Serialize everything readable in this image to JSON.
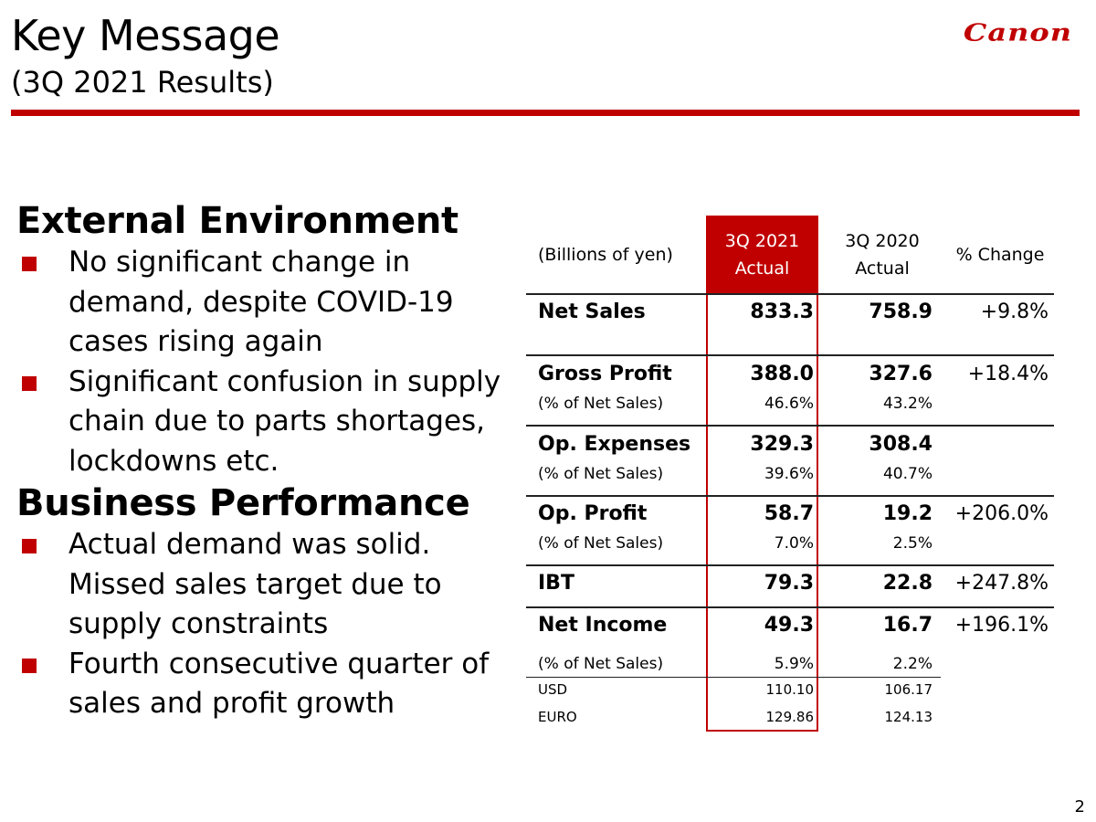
{
  "header": {
    "title": "Key Message",
    "subtitle": "(3Q 2021 Results)",
    "logo_text": "Canon",
    "accent_color": "#c00000"
  },
  "sections": [
    {
      "heading": "External Environment",
      "bullets": [
        "No significant change in demand, despite COVID-19 cases rising again",
        "Significant confusion in supply chain due to parts shortages, lockdowns etc."
      ]
    },
    {
      "heading": "Business Performance",
      "bullets": [
        "Actual demand was solid. Missed sales target due to supply constraints",
        "Fourth consecutive quarter of sales and profit growth"
      ]
    }
  ],
  "table": {
    "unit_label": "(Billions of yen)",
    "col_current": {
      "line1": "3Q 2021",
      "line2": "Actual"
    },
    "col_prior": {
      "line1": "3Q 2020",
      "line2": "Actual"
    },
    "col_change": "% Change",
    "rows": {
      "net_sales": {
        "label": "Net Sales",
        "current": "833.3",
        "prior": "758.9",
        "change": "+9.8%"
      },
      "gross_profit": {
        "label": "Gross Profit",
        "current": "388.0",
        "prior": "327.6",
        "change": "+18.4%"
      },
      "gross_profit_pct": {
        "label": "(% of Net Sales)",
        "current": "46.6%",
        "prior": "43.2%"
      },
      "op_expenses": {
        "label": "Op. Expenses",
        "current": "329.3",
        "prior": "308.4"
      },
      "op_expenses_pct": {
        "label": "(% of Net Sales)",
        "current": "39.6%",
        "prior": "40.7%"
      },
      "op_profit": {
        "label": "Op. Profit",
        "current": "58.7",
        "prior": "19.2",
        "change": "+206.0%"
      },
      "op_profit_pct": {
        "label": "(% of Net Sales)",
        "current": "7.0%",
        "prior": "2.5%"
      },
      "ibt": {
        "label": "IBT",
        "current": "79.3",
        "prior": "22.8",
        "change": "+247.8%"
      },
      "net_income": {
        "label": "Net Income",
        "current": "49.3",
        "prior": "16.7",
        "change": "+196.1%"
      },
      "net_income_pct": {
        "label": "(% of Net Sales)",
        "current": "5.9%",
        "prior": "2.2%"
      },
      "usd": {
        "label": "USD",
        "current": "110.10",
        "prior": "106.17"
      },
      "euro": {
        "label": "EURO",
        "current": "129.86",
        "prior": "124.13"
      }
    }
  },
  "page_number": "2"
}
